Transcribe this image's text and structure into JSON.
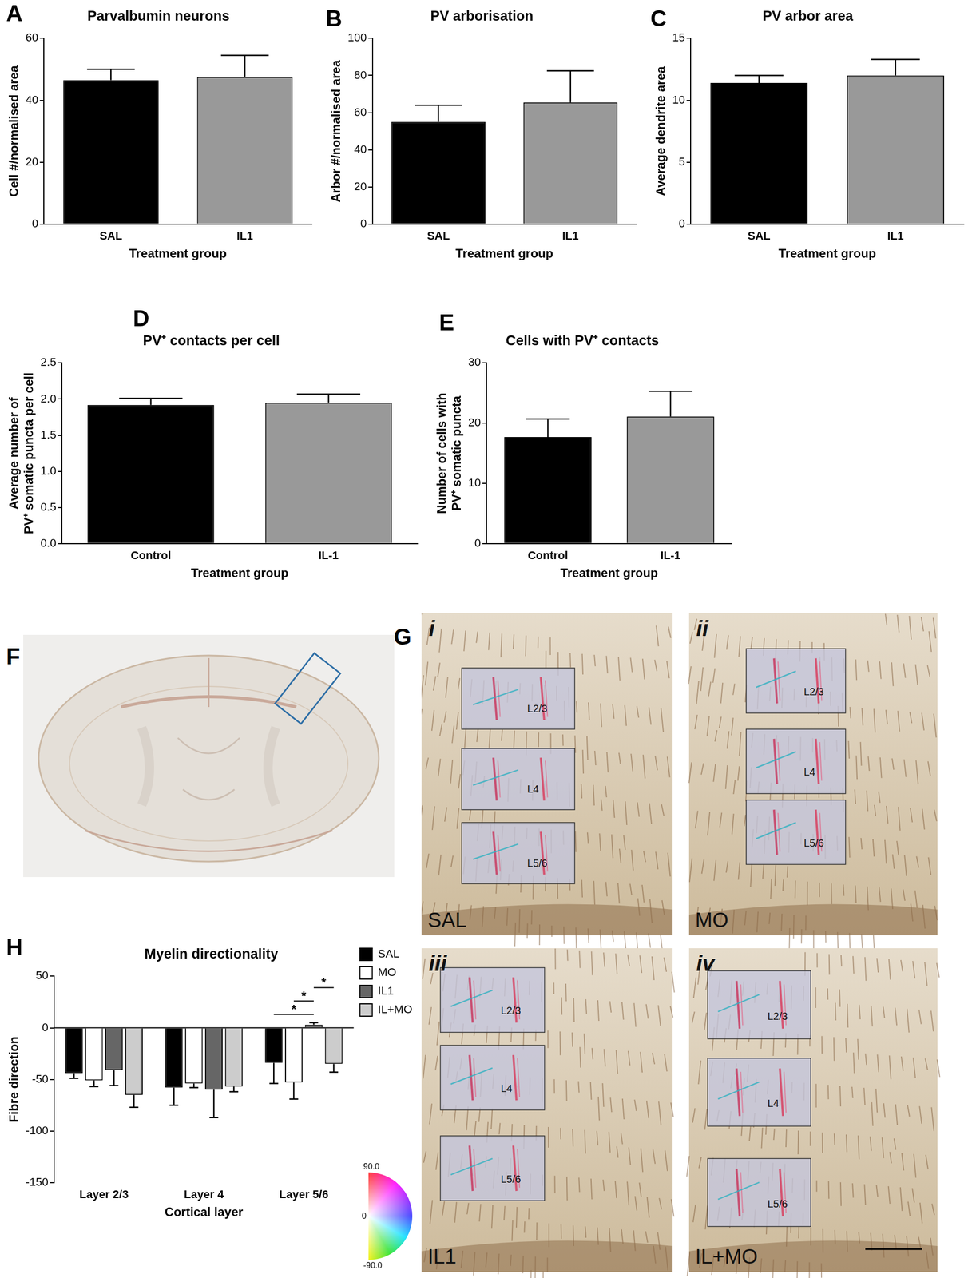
{
  "chart_data": [
    {
      "panel": "A",
      "type": "bar",
      "title": "Parvalbumin neurons",
      "x_label": "Treatment group",
      "y_label": "Cell #/normalised area",
      "categories": [
        "SAL",
        "IL1"
      ],
      "values": [
        46.5,
        47.5
      ],
      "errors": [
        3.5,
        7
      ],
      "colors": [
        "#000000",
        "#999999"
      ],
      "ylim": [
        0,
        60
      ],
      "yticks": [
        0,
        20,
        40,
        60
      ],
      "grid": false
    },
    {
      "panel": "B",
      "type": "bar",
      "title": "PV arborisation",
      "x_label": "Treatment group",
      "y_label": "Arbor #/normalised area",
      "categories": [
        "SAL",
        "IL1"
      ],
      "values": [
        55,
        65.5
      ],
      "errors": [
        9,
        17
      ],
      "colors": [
        "#000000",
        "#999999"
      ],
      "ylim": [
        0,
        100
      ],
      "yticks": [
        0,
        20,
        40,
        60,
        80,
        100
      ],
      "grid": false
    },
    {
      "panel": "C",
      "type": "bar",
      "title": "PV arbor area",
      "x_label": "Treatment group",
      "y_label": "Average dendrite area",
      "categories": [
        "SAL",
        "IL1"
      ],
      "values": [
        11.4,
        12
      ],
      "errors": [
        0.6,
        1.3
      ],
      "colors": [
        "#000000",
        "#999999"
      ],
      "ylim": [
        0,
        15
      ],
      "yticks": [
        0,
        5,
        10,
        15
      ],
      "grid": false
    },
    {
      "panel": "D",
      "type": "bar",
      "title": "PV⁺ contacts per cell",
      "x_label": "Treatment group",
      "y_label": [
        "Average number of",
        "PV⁺ somatic puncta per cell"
      ],
      "categories": [
        "Control",
        "IL-1"
      ],
      "values": [
        1.92,
        1.95
      ],
      "errors": [
        0.09,
        0.12
      ],
      "colors": [
        "#000000",
        "#999999"
      ],
      "ylim": [
        0,
        2.5
      ],
      "yticks": [
        {
          "value": 0,
          "label": "0.0"
        },
        0.5,
        {
          "value": 1,
          "label": "1.0"
        },
        1.5,
        {
          "value": 2,
          "label": "2.0"
        },
        2.5
      ],
      "grid": false
    },
    {
      "panel": "E",
      "type": "bar",
      "title": "Cells with PV⁺ contacts",
      "x_label": "Treatment group",
      "y_label": [
        "Number of cells with",
        "PV⁺ somatic puncta"
      ],
      "categories": [
        "Control",
        "IL-1"
      ],
      "values": [
        17.7,
        21.1
      ],
      "errors": [
        3,
        4.2
      ],
      "colors": [
        "#000000",
        "#999999"
      ],
      "ylim": [
        0,
        30
      ],
      "yticks": [
        0,
        10,
        20,
        30
      ],
      "grid": false
    },
    {
      "panel": "H",
      "type": "bar",
      "title": "Myelin directionality",
      "x_label": "Cortical layer",
      "y_label": "Fibre direction",
      "categories": [
        "Layer 2/3",
        "Layer 4",
        "Layer 5/6"
      ],
      "series": [
        {
          "name": "SAL",
          "color": "#000000",
          "values": [
            -44,
            -58,
            -34
          ],
          "errors": [
            5,
            17,
            20
          ]
        },
        {
          "name": "MO",
          "color": "#ffffff",
          "values": [
            -51,
            -54,
            -53
          ],
          "errors": [
            6,
            4,
            16
          ]
        },
        {
          "name": "IL1",
          "color": "#666666",
          "values": [
            -41,
            -60,
            3
          ],
          "errors": [
            15,
            27,
            2
          ]
        },
        {
          "name": "IL+MO",
          "color": "#cccccc",
          "values": [
            -65,
            -57,
            -35
          ],
          "errors": [
            12,
            5,
            8
          ]
        }
      ],
      "annotations": [
        {
          "text": "*",
          "category": "Layer 5/6",
          "between": [
            "SAL",
            "IL1"
          ]
        },
        {
          "text": "*",
          "category": "Layer 5/6",
          "between": [
            "MO",
            "IL1"
          ]
        },
        {
          "text": "*",
          "category": "Layer 5/6",
          "between": [
            "IL1",
            "IL+MO"
          ]
        }
      ],
      "ylim": [
        -150,
        50
      ],
      "yticks": [
        -150,
        -100,
        -50,
        0,
        50
      ],
      "grid": false,
      "legend": "right"
    }
  ],
  "images": {
    "F": {
      "panel": "F"
    },
    "G": {
      "panel": "G",
      "subpanels": [
        {
          "numeral": "i",
          "group": "SAL",
          "layers": [
            "L2/3",
            "L4",
            "L5/6"
          ]
        },
        {
          "numeral": "ii",
          "group": "MO",
          "layers": [
            "L2/3",
            "L4",
            "L5/6"
          ]
        },
        {
          "numeral": "iii",
          "group": "IL1",
          "layers": [
            "L2/3",
            "L4",
            "L5/6"
          ]
        },
        {
          "numeral": "iv",
          "group": "IL+MO",
          "layers": [
            "L2/3",
            "L4",
            "L5/6"
          ]
        }
      ]
    }
  },
  "color_wheel": {
    "ticks": [
      {
        "value": 90,
        "label": "90.0"
      },
      0,
      {
        "value": -90,
        "label": "-90.0"
      }
    ]
  }
}
